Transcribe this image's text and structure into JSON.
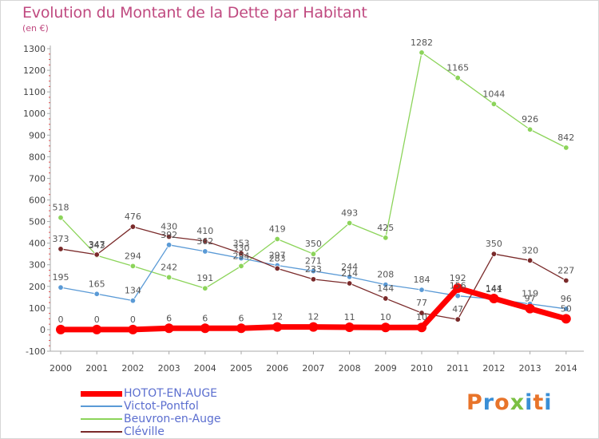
{
  "title": "Evolution du Montant de la Dette par Habitant",
  "unit_label": "(en €)",
  "logo_text": "Proxiti",
  "logo_colors": [
    "#e8742a",
    "#3a8fd6",
    "#e8742a",
    "#7bc043",
    "#3a8fd6",
    "#e8742a",
    "#3a8fd6"
  ],
  "chart_data": {
    "type": "line",
    "x": [
      2000,
      2001,
      2002,
      2003,
      2004,
      2005,
      2006,
      2007,
      2008,
      2009,
      2010,
      2011,
      2012,
      2013,
      2014
    ],
    "ylim": [
      -100,
      1300
    ],
    "yticks": [
      -100,
      0,
      100,
      200,
      300,
      400,
      500,
      600,
      700,
      800,
      900,
      1000,
      1100,
      1200,
      1300
    ],
    "grid": false,
    "legend_position": "bottom-left",
    "series": [
      {
        "name": "HOTOT-EN-AUGE",
        "color": "#ff0000",
        "values": [
          0,
          0,
          0,
          6,
          6,
          6,
          12,
          12,
          11,
          10,
          10,
          192,
          144,
          97,
          50
        ]
      },
      {
        "name": "Victot-Pontfol",
        "color": "#5a9ad6",
        "values": [
          195,
          165,
          134,
          392,
          362,
          330,
          297,
          271,
          244,
          208,
          184,
          156,
          141,
          119,
          96
        ]
      },
      {
        "name": "Beuvron-en-Auge",
        "color": "#8cd45a",
        "values": [
          518,
          343,
          294,
          242,
          191,
          294,
          419,
          350,
          493,
          425,
          1282,
          1165,
          1044,
          926,
          842
        ]
      },
      {
        "name": "Cléville",
        "color": "#7a2a2a",
        "values": [
          373,
          347,
          476,
          430,
          410,
          353,
          283,
          233,
          214,
          144,
          77,
          47,
          350,
          320,
          227
        ]
      }
    ],
    "data_labels": [
      {
        "series": 0,
        "labels": [
          "0",
          "0",
          "0",
          "6",
          "6",
          "6",
          "12",
          "12",
          "11",
          "10",
          "10",
          "192",
          "144",
          "97",
          "50"
        ]
      },
      {
        "series": 1,
        "labels": [
          "195",
          "165",
          "134",
          "392",
          "362",
          "330",
          "297",
          "271",
          "244",
          "208",
          "184",
          "156",
          "141",
          "119",
          "96"
        ]
      },
      {
        "series": 2,
        "labels": [
          "518",
          "343",
          "294",
          "242",
          "191",
          "294",
          "419",
          "350",
          "493",
          "425",
          "1282",
          "1165",
          "1044",
          "926",
          "842"
        ]
      },
      {
        "series": 3,
        "labels": [
          "373",
          "347",
          "476",
          "430",
          "410",
          "353",
          "283",
          "233",
          "214",
          "144",
          "77",
          "47",
          "350",
          "320",
          "227"
        ]
      }
    ]
  }
}
